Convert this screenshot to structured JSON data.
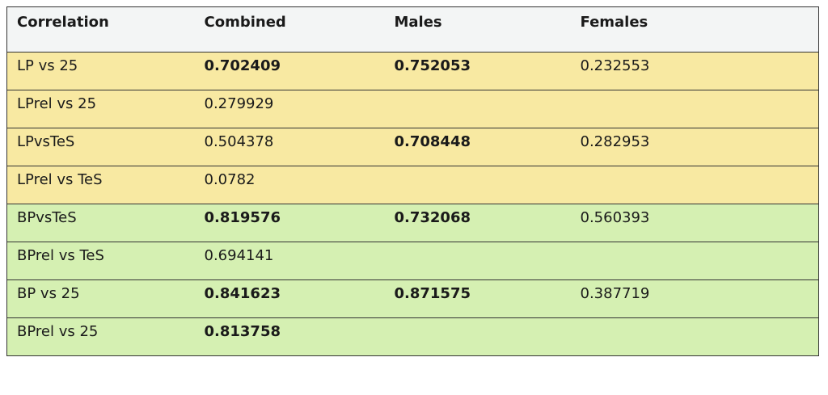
{
  "table": {
    "header": [
      "Correlation",
      "Combined",
      "Males",
      "Females"
    ],
    "rows": [
      {
        "cells": [
          "LP vs 25",
          "0.702409",
          "0.752053",
          "0.232553"
        ],
        "bold": [
          1,
          2
        ],
        "color": "#f8e9a2"
      },
      {
        "cells": [
          "LPrel vs 25",
          "0.279929",
          null,
          null
        ],
        "bold": [],
        "color": "#f8e9a2"
      },
      {
        "cells": [
          "LPvsTeS",
          "0.504378",
          "0.708448",
          "0.282953"
        ],
        "bold": [
          2
        ],
        "color": "#f8e9a2"
      },
      {
        "cells": [
          "LPrel vs TeS",
          "0.0782",
          null,
          null
        ],
        "bold": [],
        "color": "#f8e9a2"
      },
      {
        "cells": [
          "BPvsTeS",
          "0.819576",
          "0.732068",
          "0.560393"
        ],
        "bold": [
          1,
          2
        ],
        "color": "#d5f0b2"
      },
      {
        "cells": [
          "BPrel vs TeS",
          "0.694141",
          null,
          null
        ],
        "bold": [],
        "color": "#d5f0b2"
      },
      {
        "cells": [
          "BP vs 25",
          "0.841623",
          "0.871575",
          "0.387719"
        ],
        "bold": [
          1,
          2
        ],
        "color": "#d5f0b2"
      },
      {
        "cells": [
          "BPrel vs 25",
          "0.813758",
          null,
          null
        ],
        "bold": [
          1
        ],
        "color": "#d5f0b2"
      }
    ]
  }
}
